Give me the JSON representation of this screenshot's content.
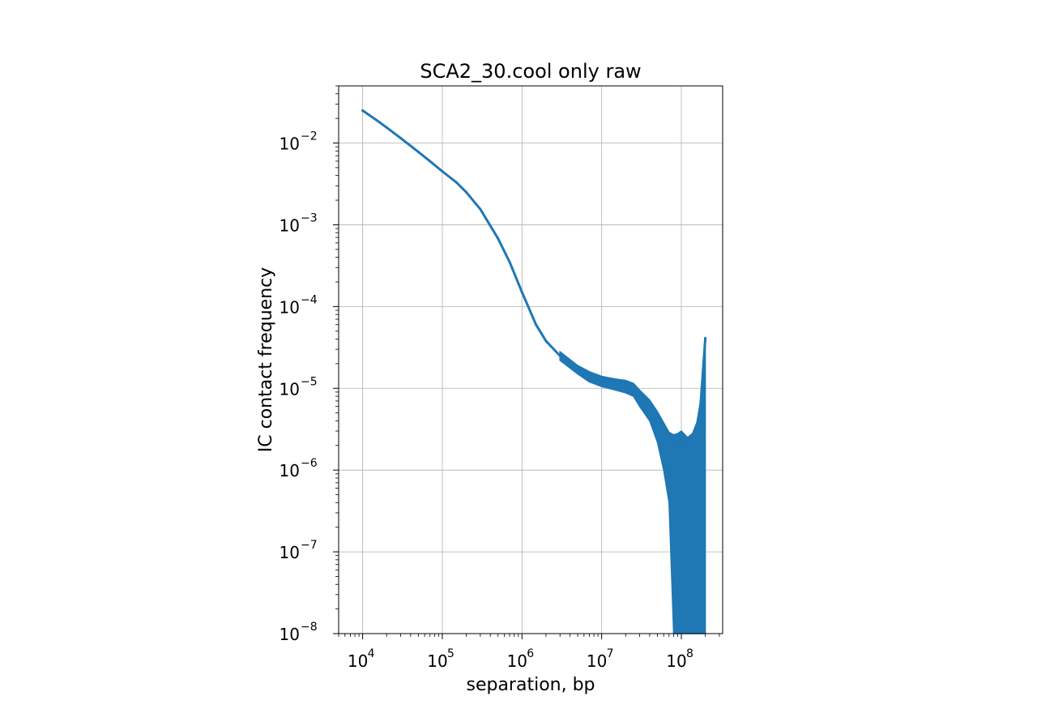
{
  "chart_data": {
    "type": "line",
    "title": "SCA2_30.cool only raw",
    "xlabel": "separation, bp",
    "ylabel": "IC contact frequency",
    "xscale": "log",
    "yscale": "log",
    "xlim": [
      5000,
      330000000
    ],
    "ylim": [
      1e-08,
      0.05
    ],
    "grid": true,
    "color": "#1f77b4",
    "x_ticks": [
      {
        "base": "10",
        "exp": "4"
      },
      {
        "base": "10",
        "exp": "5"
      },
      {
        "base": "10",
        "exp": "6"
      },
      {
        "base": "10",
        "exp": "7"
      },
      {
        "base": "10",
        "exp": "8"
      }
    ],
    "y_ticks": [
      {
        "base": "10",
        "exp": "−8"
      },
      {
        "base": "10",
        "exp": "−7"
      },
      {
        "base": "10",
        "exp": "−6"
      },
      {
        "base": "10",
        "exp": "−5"
      },
      {
        "base": "10",
        "exp": "−4"
      },
      {
        "base": "10",
        "exp": "−3"
      },
      {
        "base": "10",
        "exp": "−2"
      }
    ],
    "series": [
      {
        "x": [
          10000,
          15000,
          20000,
          30000,
          50000,
          70000,
          100000,
          150000,
          200000,
          300000,
          500000,
          700000,
          1000000,
          1500000,
          2000000,
          3000000,
          5000000,
          7000000,
          10000000,
          15000000,
          20000000,
          30000000,
          40000000,
          50000000,
          60000000,
          70000000,
          80000000,
          100000000,
          130000000,
          170000000,
          200000000
        ],
        "y": [
          0.025,
          0.019,
          0.0155,
          0.0115,
          0.0078,
          0.006,
          0.0045,
          0.0033,
          0.0025,
          0.00155,
          0.00068,
          0.00035,
          0.00015,
          6e-05,
          3.8e-05,
          2.5e-05,
          1.7e-05,
          1.4e-05,
          1.2e-05,
          1.15e-05,
          1.05e-05,
          8e-06,
          6e-06,
          4.5e-06,
          3.5e-06,
          2.8e-06,
          2.2e-06,
          2.2e-06,
          2.3e-06,
          4.5e-06,
          4.1e-05
        ]
      }
    ],
    "noise_band": {
      "x": [
        3000000,
        5000000,
        7000000,
        10000000,
        15000000,
        20000000,
        25000000,
        30000000,
        40000000,
        50000000,
        60000000,
        70000000,
        80000000,
        90000000,
        100000000,
        120000000,
        150000000,
        180000000,
        200000000
      ],
      "upper": [
        2.8e-05,
        1.9e-05,
        1.6e-05,
        1.4e-05,
        1.3e-05,
        1.25e-05,
        1.15e-05,
        9.5e-06,
        7.2e-06,
        5.2e-06,
        3.8e-06,
        2.9e-06,
        2.7e-06,
        2.8e-06,
        3e-06,
        2.5e-06,
        3e-06,
        8.5e-06,
        4.1e-05
      ],
      "lower": [
        2.2e-05,
        1.5e-05,
        1.2e-05,
        1.05e-05,
        9.5e-06,
        8.8e-06,
        8e-06,
        6e-06,
        4e-06,
        2.2e-06,
        1e-06,
        4e-07,
        1e-08,
        1e-08,
        1e-08,
        1e-08,
        1e-08,
        1e-08,
        1e-08
      ]
    }
  }
}
